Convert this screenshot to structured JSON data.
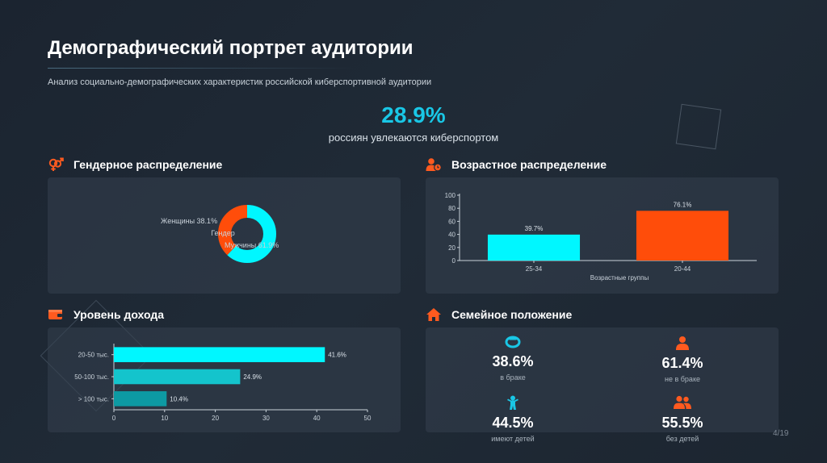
{
  "header": {
    "title": "Демографический портрет аудитории",
    "subtitle": "Анализ социально-демографических характеристик российской киберспортивной аудитории"
  },
  "headline_stat": {
    "value": "28.9%",
    "caption": "россиян увлекаются киберспортом"
  },
  "sections": {
    "gender": "Гендерное распределение",
    "age": "Возрастное распределение",
    "income": "Уровень дохода",
    "family": "Семейное положение"
  },
  "colors": {
    "cyan": "#00f7ff",
    "orange": "#ff4d0a",
    "teal_mid": "#14c4cc",
    "teal_dark": "#0d9aa3",
    "accent_icon": "#ff5a1f",
    "headline": "#19c7e6"
  },
  "chart_data": [
    {
      "type": "pie",
      "variant": "donut",
      "title": "Гендер",
      "slices": [
        {
          "label": "Мужчины",
          "value": 61.9,
          "text": "Мужчины 61.9%",
          "color": "#00f7ff"
        },
        {
          "label": "Женщины",
          "value": 38.1,
          "text": "Женщины 38.1%",
          "color": "#ff4d0a"
        }
      ]
    },
    {
      "type": "bar",
      "categories": [
        "25-34",
        "20-44"
      ],
      "values": [
        39.7,
        76.1
      ],
      "value_labels": [
        "39.7%",
        "76.1%"
      ],
      "colors": [
        "#00f7ff",
        "#ff4d0a"
      ],
      "xlabel": "Возрастные группы",
      "ylabel": "",
      "ylim": [
        0,
        100
      ],
      "yticks": [
        "0",
        "20",
        "40",
        "60",
        "80",
        "100"
      ]
    },
    {
      "type": "bar",
      "orientation": "horizontal",
      "categories": [
        "20-50 тыс.",
        "50-100 тыс.",
        "> 100 тыс."
      ],
      "values": [
        41.6,
        24.9,
        10.4
      ],
      "value_labels": [
        "41.6%",
        "24.9%",
        "10.4%"
      ],
      "colors": [
        "#00f7ff",
        "#14c4cc",
        "#0d9aa3"
      ],
      "xlim": [
        0,
        50
      ],
      "xticks": [
        "0",
        "10",
        "20",
        "30",
        "40",
        "50"
      ]
    }
  ],
  "family": [
    {
      "value": "38.6%",
      "label": "в браке",
      "icon": "ring-icon"
    },
    {
      "value": "61.4%",
      "label": "не в браке",
      "icon": "person-icon"
    },
    {
      "value": "44.5%",
      "label": "имеют детей",
      "icon": "child-icon"
    },
    {
      "value": "55.5%",
      "label": "без детей",
      "icon": "people-icon"
    }
  ],
  "page": {
    "number": "4/19"
  }
}
